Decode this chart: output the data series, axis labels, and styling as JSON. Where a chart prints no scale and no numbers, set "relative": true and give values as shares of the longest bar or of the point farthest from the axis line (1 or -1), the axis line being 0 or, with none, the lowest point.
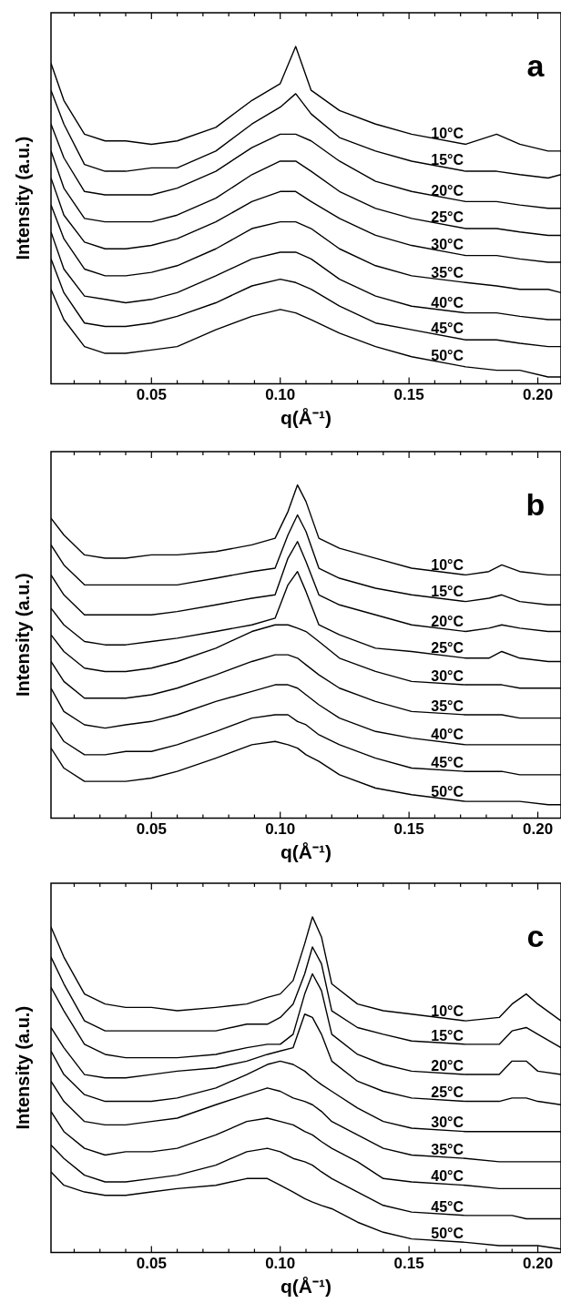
{
  "chart_data": [
    {
      "type": "line",
      "title": "a",
      "xlabel": "q(Å⁻¹)",
      "ylabel": "Intensity (a.u.)",
      "relative": true,
      "xlim": [
        0.011,
        0.209
      ],
      "xticks": [
        {
          "value": 0.02,
          "label": null
        },
        {
          "value": 0.03,
          "label": null
        },
        {
          "value": 0.04,
          "label": null
        },
        {
          "value": 0.05,
          "label": "0.05"
        },
        {
          "value": 0.06,
          "label": null
        },
        {
          "value": 0.07,
          "label": null
        },
        {
          "value": 0.08,
          "label": null
        },
        {
          "value": 0.09,
          "label": null
        },
        {
          "value": 0.1,
          "label": "0.10"
        },
        {
          "value": 0.11,
          "label": null
        },
        {
          "value": 0.12,
          "label": null
        },
        {
          "value": 0.13,
          "label": null
        },
        {
          "value": 0.14,
          "label": null
        },
        {
          "value": 0.15,
          "label": "0.15"
        },
        {
          "value": 0.16,
          "label": null
        },
        {
          "value": 0.17,
          "label": null
        },
        {
          "value": 0.18,
          "label": null
        },
        {
          "value": 0.19,
          "label": null
        },
        {
          "value": 0.2,
          "label": "0.20"
        }
      ],
      "x": [
        0.011,
        0.016,
        0.024,
        0.032,
        0.04,
        0.05,
        0.06,
        0.075,
        0.089,
        0.1,
        0.106,
        0.112,
        0.123,
        0.137,
        0.151,
        0.172,
        0.184,
        0.193,
        0.204,
        0.209
      ],
      "series": [
        {
          "name": "10°C",
          "color": "#000000",
          "values": [
            0.95,
            0.84,
            0.74,
            0.72,
            0.72,
            0.71,
            0.72,
            0.76,
            0.84,
            0.89,
            1,
            0.87,
            0.81,
            0.77,
            0.74,
            0.71,
            0.74,
            0.71,
            0.69,
            0.69
          ]
        },
        {
          "name": "15°C",
          "color": "#000000",
          "values": [
            0.87,
            0.77,
            0.65,
            0.63,
            0.63,
            0.64,
            0.64,
            0.69,
            0.77,
            0.82,
            0.86,
            0.8,
            0.73,
            0.69,
            0.66,
            0.63,
            0.63,
            0.62,
            0.61,
            0.62
          ]
        },
        {
          "name": "20°C",
          "color": "#000000",
          "values": [
            0.77,
            0.67,
            0.57,
            0.56,
            0.56,
            0.56,
            0.58,
            0.63,
            0.7,
            0.74,
            0.74,
            0.72,
            0.66,
            0.6,
            0.57,
            0.54,
            0.54,
            0.53,
            0.52,
            0.52
          ]
        },
        {
          "name": "25°C",
          "color": "#000000",
          "values": [
            0.69,
            0.58,
            0.49,
            0.48,
            0.48,
            0.48,
            0.5,
            0.55,
            0.62,
            0.66,
            0.66,
            0.63,
            0.57,
            0.52,
            0.49,
            0.46,
            0.46,
            0.45,
            0.44,
            0.44
          ]
        },
        {
          "name": "30°C",
          "color": "#000000",
          "values": [
            0.61,
            0.5,
            0.42,
            0.4,
            0.4,
            0.41,
            0.43,
            0.48,
            0.54,
            0.57,
            0.57,
            0.54,
            0.49,
            0.44,
            0.41,
            0.38,
            0.38,
            0.37,
            0.36,
            0.36
          ]
        },
        {
          "name": "35°C",
          "color": "#000000",
          "values": [
            0.53,
            0.43,
            0.34,
            0.32,
            0.32,
            0.33,
            0.35,
            0.4,
            0.46,
            0.48,
            0.48,
            0.46,
            0.4,
            0.35,
            0.32,
            0.3,
            0.29,
            0.28,
            0.28,
            0.27
          ]
        },
        {
          "name": "40°C",
          "color": "#000000",
          "values": [
            0.45,
            0.34,
            0.26,
            0.25,
            0.24,
            0.25,
            0.27,
            0.32,
            0.37,
            0.39,
            0.39,
            0.37,
            0.31,
            0.26,
            0.23,
            0.21,
            0.21,
            0.2,
            0.19,
            0.19
          ]
        },
        {
          "name": "45°C",
          "color": "#000000",
          "values": [
            0.37,
            0.27,
            0.18,
            0.17,
            0.17,
            0.18,
            0.2,
            0.24,
            0.29,
            0.31,
            0.3,
            0.28,
            0.23,
            0.18,
            0.16,
            0.13,
            0.13,
            0.12,
            0.11,
            0.11
          ]
        },
        {
          "name": "50°C",
          "color": "#000000",
          "values": [
            0.28,
            0.19,
            0.11,
            0.09,
            0.09,
            0.1,
            0.11,
            0.16,
            0.2,
            0.22,
            0.21,
            0.19,
            0.15,
            0.11,
            0.08,
            0.05,
            0.04,
            0.04,
            0.02,
            0.02
          ]
        }
      ]
    },
    {
      "type": "line",
      "title": "b",
      "xlabel": "q(Å⁻¹)",
      "ylabel": "Intensity (a.u.)",
      "relative": true,
      "xlim": [
        0.011,
        0.209
      ],
      "xticks": [
        {
          "value": 0.02,
          "label": null
        },
        {
          "value": 0.03,
          "label": null
        },
        {
          "value": 0.04,
          "label": null
        },
        {
          "value": 0.05,
          "label": "0.05"
        },
        {
          "value": 0.06,
          "label": null
        },
        {
          "value": 0.07,
          "label": null
        },
        {
          "value": 0.08,
          "label": null
        },
        {
          "value": 0.09,
          "label": null
        },
        {
          "value": 0.1,
          "label": "0.10"
        },
        {
          "value": 0.11,
          "label": null
        },
        {
          "value": 0.12,
          "label": null
        },
        {
          "value": 0.13,
          "label": null
        },
        {
          "value": 0.14,
          "label": null
        },
        {
          "value": 0.15,
          "label": "0.15"
        },
        {
          "value": 0.16,
          "label": null
        },
        {
          "value": 0.17,
          "label": null
        },
        {
          "value": 0.18,
          "label": null
        },
        {
          "value": 0.19,
          "label": null
        },
        {
          "value": 0.2,
          "label": "0.20"
        }
      ],
      "x": [
        0.011,
        0.016,
        0.024,
        0.032,
        0.04,
        0.05,
        0.06,
        0.075,
        0.089,
        0.098,
        0.103,
        0.1067,
        0.11,
        0.115,
        0.123,
        0.137,
        0.151,
        0.172,
        0.181,
        0.186,
        0.193,
        0.204,
        0.209
      ],
      "series": [
        {
          "name": "10°C",
          "color": "#000000",
          "values": [
            0.9,
            0.85,
            0.79,
            0.78,
            0.78,
            0.79,
            0.79,
            0.8,
            0.82,
            0.84,
            0.92,
            1,
            0.95,
            0.84,
            0.81,
            0.78,
            0.75,
            0.73,
            0.74,
            0.76,
            0.74,
            0.73,
            0.73
          ]
        },
        {
          "name": "15°C",
          "color": "#000000",
          "values": [
            0.82,
            0.76,
            0.7,
            0.7,
            0.7,
            0.7,
            0.7,
            0.72,
            0.74,
            0.75,
            0.85,
            0.91,
            0.86,
            0.75,
            0.72,
            0.69,
            0.67,
            0.65,
            0.66,
            0.67,
            0.65,
            0.64,
            0.64
          ]
        },
        {
          "name": "20°C",
          "color": "#000000",
          "values": [
            0.73,
            0.67,
            0.61,
            0.61,
            0.61,
            0.61,
            0.62,
            0.64,
            0.66,
            0.67,
            0.78,
            0.83,
            0.77,
            0.67,
            0.64,
            0.61,
            0.58,
            0.56,
            0.57,
            0.58,
            0.57,
            0.56,
            0.56
          ]
        },
        {
          "name": "25°C",
          "color": "#000000",
          "values": [
            0.63,
            0.58,
            0.53,
            0.52,
            0.52,
            0.53,
            0.54,
            0.56,
            0.58,
            0.6,
            0.7,
            0.74,
            0.68,
            0.58,
            0.55,
            0.51,
            0.5,
            0.48,
            0.48,
            0.5,
            0.48,
            0.47,
            0.47
          ]
        },
        {
          "name": "30°C",
          "color": "#000000",
          "values": [
            0.55,
            0.5,
            0.45,
            0.44,
            0.44,
            0.45,
            0.47,
            0.51,
            0.56,
            0.58,
            0.58,
            0.57,
            0.56,
            0.53,
            0.48,
            0.44,
            0.41,
            0.4,
            0.4,
            0.4,
            0.39,
            0.39,
            0.39
          ]
        },
        {
          "name": "35°C",
          "color": "#000000",
          "values": [
            0.47,
            0.41,
            0.36,
            0.36,
            0.36,
            0.37,
            0.39,
            0.43,
            0.47,
            0.49,
            0.49,
            0.48,
            0.46,
            0.43,
            0.39,
            0.35,
            0.32,
            0.31,
            0.31,
            0.31,
            0.3,
            0.3,
            0.3
          ]
        },
        {
          "name": "40°C",
          "color": "#000000",
          "values": [
            0.39,
            0.32,
            0.28,
            0.27,
            0.28,
            0.29,
            0.31,
            0.35,
            0.38,
            0.4,
            0.4,
            0.39,
            0.37,
            0.34,
            0.3,
            0.26,
            0.24,
            0.22,
            0.22,
            0.22,
            0.22,
            0.22,
            0.22
          ]
        },
        {
          "name": "45°C",
          "color": "#000000",
          "values": [
            0.29,
            0.23,
            0.19,
            0.19,
            0.2,
            0.2,
            0.22,
            0.26,
            0.3,
            0.31,
            0.31,
            0.29,
            0.28,
            0.25,
            0.22,
            0.18,
            0.15,
            0.14,
            0.14,
            0.14,
            0.13,
            0.13,
            0.13
          ]
        },
        {
          "name": "50°C",
          "color": "#000000",
          "values": [
            0.21,
            0.15,
            0.11,
            0.11,
            0.11,
            0.12,
            0.14,
            0.18,
            0.22,
            0.23,
            0.22,
            0.21,
            0.19,
            0.17,
            0.13,
            0.09,
            0.07,
            0.05,
            0.05,
            0.05,
            0.05,
            0.04,
            0.04
          ]
        }
      ]
    },
    {
      "type": "line",
      "title": "c",
      "xlabel": "q(Å⁻¹)",
      "ylabel": "Intensity (a.u.)",
      "relative": true,
      "xlim": [
        0.011,
        0.209
      ],
      "xticks": [
        {
          "value": 0.02,
          "label": null
        },
        {
          "value": 0.03,
          "label": null
        },
        {
          "value": 0.04,
          "label": null
        },
        {
          "value": 0.05,
          "label": "0.05"
        },
        {
          "value": 0.06,
          "label": null
        },
        {
          "value": 0.07,
          "label": null
        },
        {
          "value": 0.08,
          "label": null
        },
        {
          "value": 0.09,
          "label": null
        },
        {
          "value": 0.1,
          "label": "0.10"
        },
        {
          "value": 0.11,
          "label": null
        },
        {
          "value": 0.12,
          "label": null
        },
        {
          "value": 0.13,
          "label": null
        },
        {
          "value": 0.14,
          "label": null
        },
        {
          "value": 0.15,
          "label": "0.15"
        },
        {
          "value": 0.16,
          "label": null
        },
        {
          "value": 0.17,
          "label": null
        },
        {
          "value": 0.18,
          "label": null
        },
        {
          "value": 0.19,
          "label": null
        },
        {
          "value": 0.2,
          "label": "0.20"
        }
      ],
      "x": [
        0.011,
        0.016,
        0.024,
        0.032,
        0.04,
        0.05,
        0.06,
        0.075,
        0.087,
        0.095,
        0.1,
        0.105,
        0.1095,
        0.1125,
        0.116,
        0.12,
        0.13,
        0.14,
        0.151,
        0.172,
        0.185,
        0.19,
        0.1955,
        0.2,
        0.209
      ],
      "series": [
        {
          "name": "10°C",
          "color": "#000000",
          "values": [
            0.97,
            0.88,
            0.77,
            0.74,
            0.73,
            0.73,
            0.72,
            0.73,
            0.74,
            0.76,
            0.77,
            0.81,
            0.92,
            1,
            0.94,
            0.8,
            0.74,
            0.72,
            0.71,
            0.69,
            0.7,
            0.74,
            0.77,
            0.74,
            0.69
          ]
        },
        {
          "name": "15°C",
          "color": "#000000",
          "values": [
            0.88,
            0.8,
            0.69,
            0.66,
            0.66,
            0.66,
            0.66,
            0.66,
            0.68,
            0.68,
            0.7,
            0.74,
            0.83,
            0.91,
            0.86,
            0.72,
            0.67,
            0.65,
            0.63,
            0.62,
            0.62,
            0.66,
            0.67,
            0.65,
            0.61
          ]
        },
        {
          "name": "20°C",
          "color": "#000000",
          "values": [
            0.79,
            0.72,
            0.62,
            0.59,
            0.58,
            0.58,
            0.58,
            0.59,
            0.61,
            0.62,
            0.62,
            0.65,
            0.77,
            0.83,
            0.78,
            0.65,
            0.59,
            0.56,
            0.54,
            0.53,
            0.53,
            0.57,
            0.57,
            0.54,
            0.53
          ]
        },
        {
          "name": "25°C",
          "color": "#000000",
          "values": [
            0.67,
            0.61,
            0.53,
            0.52,
            0.52,
            0.53,
            0.54,
            0.55,
            0.57,
            0.59,
            0.6,
            0.61,
            0.71,
            0.7,
            0.65,
            0.57,
            0.51,
            0.48,
            0.46,
            0.45,
            0.45,
            0.46,
            0.46,
            0.45,
            0.44
          ]
        },
        {
          "name": "30°C",
          "color": "#000000",
          "values": [
            0.6,
            0.53,
            0.47,
            0.45,
            0.45,
            0.45,
            0.46,
            0.49,
            0.53,
            0.56,
            0.57,
            0.56,
            0.54,
            0.52,
            0.5,
            0.48,
            0.43,
            0.39,
            0.37,
            0.36,
            0.36,
            0.36,
            0.36,
            0.36,
            0.36
          ]
        },
        {
          "name": "35°C",
          "color": "#000000",
          "values": [
            0.51,
            0.45,
            0.39,
            0.38,
            0.38,
            0.39,
            0.4,
            0.44,
            0.47,
            0.49,
            0.48,
            0.46,
            0.45,
            0.44,
            0.42,
            0.39,
            0.35,
            0.31,
            0.29,
            0.28,
            0.27,
            0.27,
            0.27,
            0.27,
            0.27
          ]
        },
        {
          "name": "40°C",
          "color": "#000000",
          "values": [
            0.42,
            0.36,
            0.31,
            0.29,
            0.3,
            0.3,
            0.31,
            0.35,
            0.39,
            0.4,
            0.39,
            0.38,
            0.36,
            0.35,
            0.33,
            0.31,
            0.27,
            0.22,
            0.21,
            0.2,
            0.19,
            0.19,
            0.19,
            0.19,
            0.19
          ]
        },
        {
          "name": "45°C",
          "color": "#000000",
          "values": [
            0.32,
            0.28,
            0.23,
            0.21,
            0.21,
            0.22,
            0.23,
            0.26,
            0.3,
            0.31,
            0.3,
            0.28,
            0.27,
            0.26,
            0.24,
            0.22,
            0.18,
            0.14,
            0.12,
            0.11,
            0.11,
            0.11,
            0.1,
            0.1,
            0.1
          ]
        },
        {
          "name": "50°C",
          "color": "#000000",
          "values": [
            0.24,
            0.2,
            0.18,
            0.17,
            0.17,
            0.18,
            0.19,
            0.2,
            0.22,
            0.22,
            0.2,
            0.18,
            0.16,
            0.15,
            0.14,
            0.13,
            0.09,
            0.06,
            0.04,
            0.03,
            0.02,
            0.02,
            0.02,
            0.02,
            0.01
          ]
        }
      ]
    }
  ]
}
